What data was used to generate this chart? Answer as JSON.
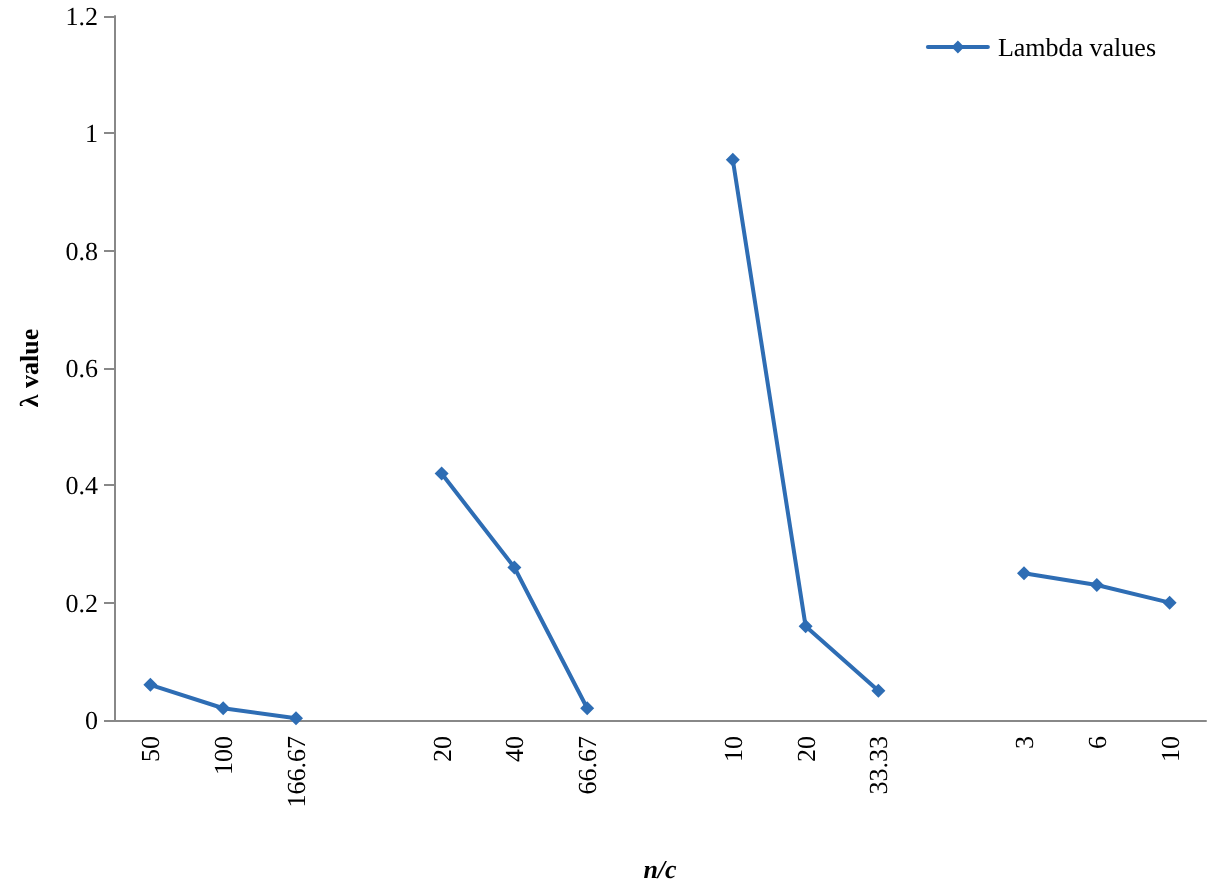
{
  "chart_data": {
    "type": "line",
    "xlabel": "n/c",
    "ylabel": "λ value",
    "categories": [
      "50",
      "100",
      "166.67",
      null,
      "20",
      "40",
      "66.67",
      null,
      "10",
      "20",
      "33.33",
      null,
      "3",
      "6",
      "10"
    ],
    "series": [
      {
        "name": "Lambda values",
        "color": "#2e6db4",
        "values": [
          0.06,
          0.02,
          0.003,
          null,
          0.42,
          0.26,
          0.02,
          null,
          0.955,
          0.16,
          0.05,
          null,
          0.25,
          0.23,
          0.2
        ]
      }
    ],
    "ylim": [
      0,
      1.2
    ],
    "yticks": [
      0,
      0.2,
      0.4,
      0.6,
      0.8,
      1,
      1.2
    ],
    "grid": false,
    "legend": "top right",
    "marker": "diamond",
    "line_style": "solid"
  }
}
